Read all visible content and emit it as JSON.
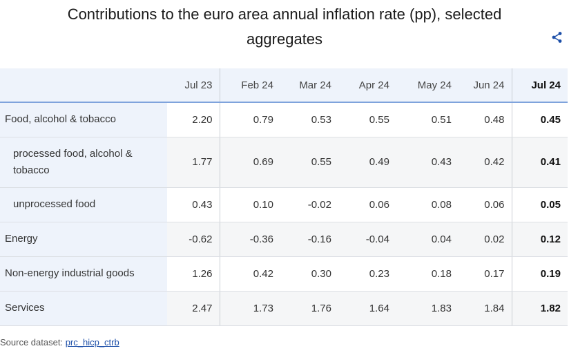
{
  "title": "Contributions to the euro area annual inflation rate (pp), selected aggregates",
  "icons": {
    "share": "share-icon"
  },
  "colors": {
    "header_bg": "#eef3fb",
    "header_rule": "#7fa3dc",
    "link": "#1d4fa8"
  },
  "table": {
    "columns": [
      "Jul 23",
      "Feb 24",
      "Mar 24",
      "Apr 24",
      "May 24",
      "Jun 24",
      "Jul 24"
    ],
    "rows": [
      {
        "label": "Food, alcohol & tobacco",
        "values": [
          "2.20",
          "0.79",
          "0.53",
          "0.55",
          "0.51",
          "0.48",
          "0.45"
        ]
      },
      {
        "label": "processed food, alcohol & tobacco",
        "values": [
          "1.77",
          "0.69",
          "0.55",
          "0.49",
          "0.43",
          "0.42",
          "0.41"
        ]
      },
      {
        "label": "unprocessed food",
        "values": [
          "0.43",
          "0.10",
          "-0.02",
          "0.06",
          "0.08",
          "0.06",
          "0.05"
        ]
      },
      {
        "label": "Energy",
        "values": [
          "-0.62",
          "-0.36",
          "-0.16",
          "-0.04",
          "0.04",
          "0.02",
          "0.12"
        ]
      },
      {
        "label": "Non-energy industrial goods",
        "values": [
          "1.26",
          "0.42",
          "0.30",
          "0.23",
          "0.18",
          "0.17",
          "0.19"
        ]
      },
      {
        "label": "Services",
        "values": [
          "2.47",
          "1.73",
          "1.76",
          "1.64",
          "1.83",
          "1.84",
          "1.82"
        ]
      }
    ]
  },
  "source": {
    "label": "Source dataset:",
    "link_text": "prc_hicp_ctrb"
  }
}
